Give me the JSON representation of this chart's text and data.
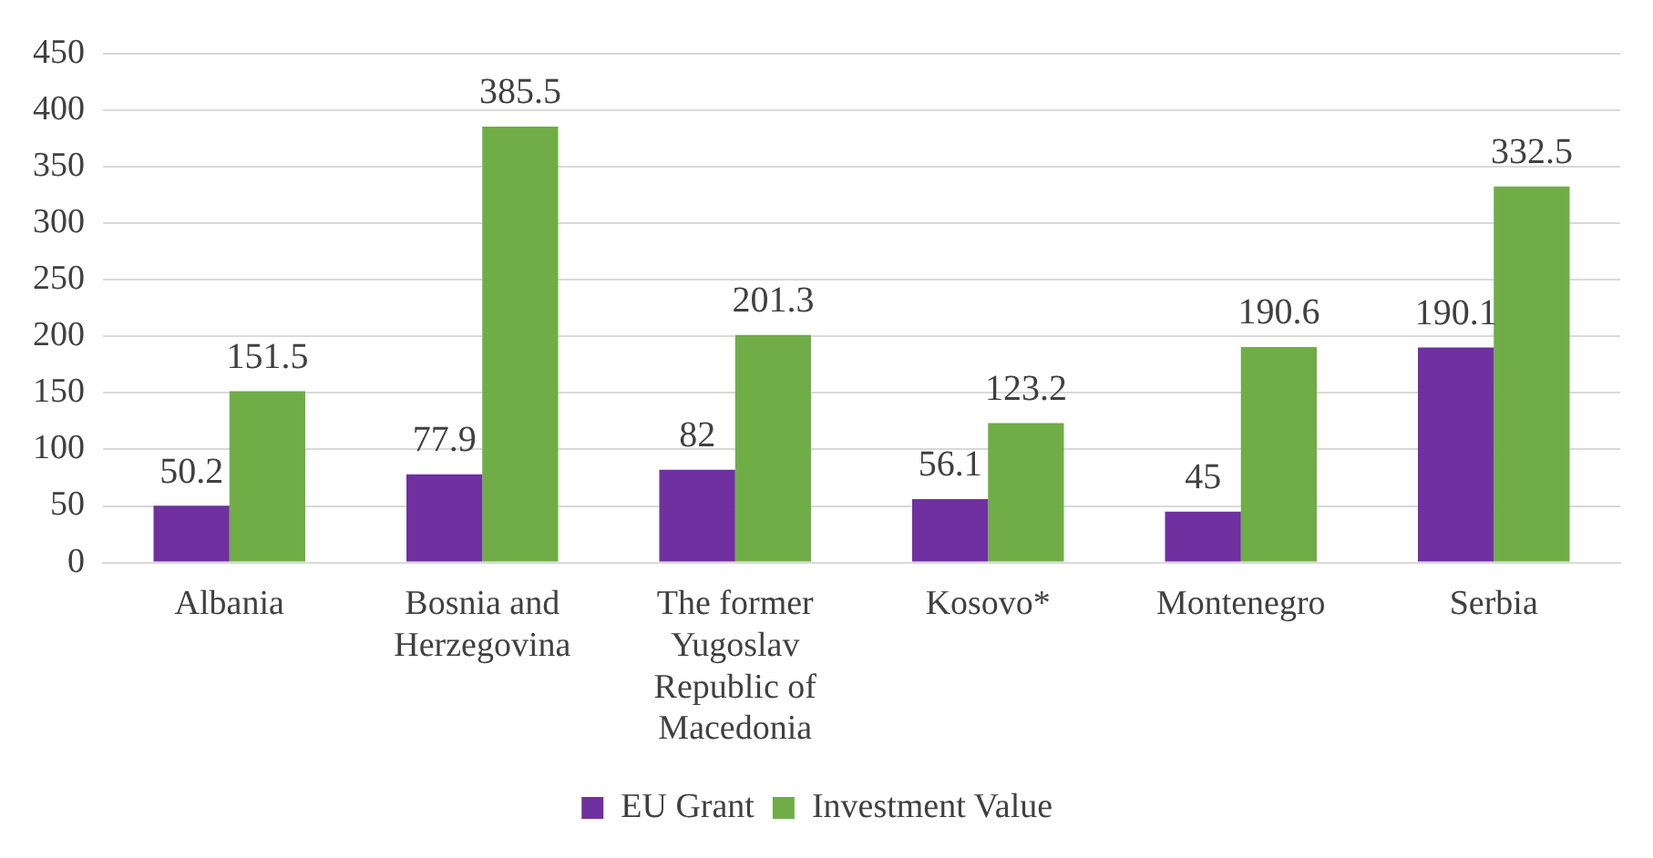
{
  "chart_data": {
    "type": "bar",
    "categories": [
      "Albania",
      "Bosnia and Herzegovina",
      "The former Yugoslav Republic of Macedonia",
      "Kosovo*",
      "Montenegro",
      "Serbia"
    ],
    "series": [
      {
        "name": "EU Grant",
        "color": "#7030a0",
        "values": [
          50.2,
          77.9,
          82,
          56.1,
          45,
          190.1
        ]
      },
      {
        "name": "Investment Value",
        "color": "#70ad47",
        "values": [
          151.5,
          385.5,
          201.3,
          123.2,
          190.6,
          332.5
        ]
      }
    ],
    "ylim": [
      0,
      450
    ],
    "yticks": [
      0,
      50,
      100,
      150,
      200,
      250,
      300,
      350,
      400,
      450
    ],
    "grid": "y",
    "legend": "bottom",
    "data_labels": true
  }
}
